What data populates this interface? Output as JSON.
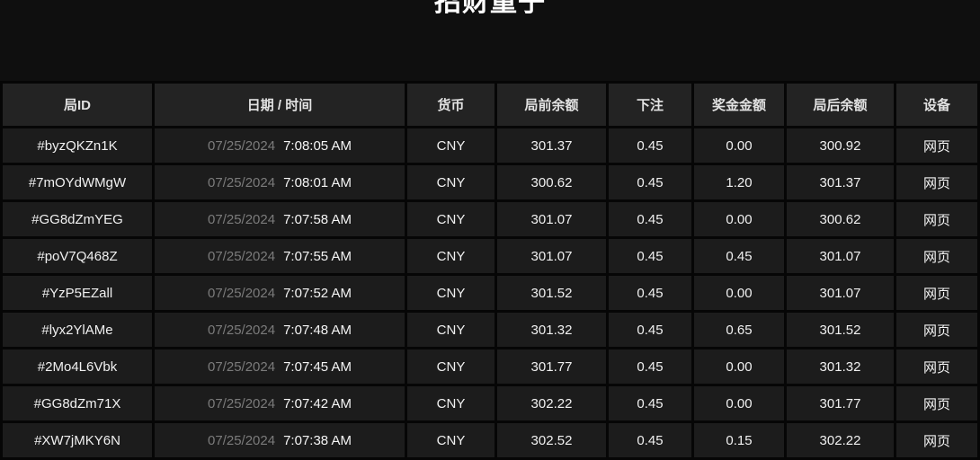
{
  "page": {
    "title": "招财童子"
  },
  "colors": {
    "page_background": "#0f0f0f",
    "header_cell_background": "#232323",
    "row_cell_background": "#1c1c1c",
    "divider": "#060606",
    "date_text": "#7b7b7b",
    "primary_text": "#f0f0f0"
  },
  "table": {
    "columns": [
      {
        "key": "id",
        "label": "局ID"
      },
      {
        "key": "datetime",
        "label": "日期 / 时间"
      },
      {
        "key": "currency",
        "label": "货币"
      },
      {
        "key": "balance_before",
        "label": "局前余额"
      },
      {
        "key": "bet",
        "label": "下注"
      },
      {
        "key": "prize",
        "label": "奖金金额"
      },
      {
        "key": "balance_after",
        "label": "局后余额"
      },
      {
        "key": "device",
        "label": "设备"
      }
    ],
    "rows": [
      {
        "id": "#byzQKZn1K",
        "date": "07/25/2024",
        "time": "7:08:05 AM",
        "currency": "CNY",
        "balance_before": "301.37",
        "bet": "0.45",
        "prize": "0.00",
        "balance_after": "300.92",
        "device": "网页"
      },
      {
        "id": "#7mOYdWMgW",
        "date": "07/25/2024",
        "time": "7:08:01 AM",
        "currency": "CNY",
        "balance_before": "300.62",
        "bet": "0.45",
        "prize": "1.20",
        "balance_after": "301.37",
        "device": "网页"
      },
      {
        "id": "#GG8dZmYEG",
        "date": "07/25/2024",
        "time": "7:07:58 AM",
        "currency": "CNY",
        "balance_before": "301.07",
        "bet": "0.45",
        "prize": "0.00",
        "balance_after": "300.62",
        "device": "网页"
      },
      {
        "id": "#poV7Q468Z",
        "date": "07/25/2024",
        "time": "7:07:55 AM",
        "currency": "CNY",
        "balance_before": "301.07",
        "bet": "0.45",
        "prize": "0.45",
        "balance_after": "301.07",
        "device": "网页"
      },
      {
        "id": "#YzP5EZall",
        "date": "07/25/2024",
        "time": "7:07:52 AM",
        "currency": "CNY",
        "balance_before": "301.52",
        "bet": "0.45",
        "prize": "0.00",
        "balance_after": "301.07",
        "device": "网页"
      },
      {
        "id": "#lyx2YlAMe",
        "date": "07/25/2024",
        "time": "7:07:48 AM",
        "currency": "CNY",
        "balance_before": "301.32",
        "bet": "0.45",
        "prize": "0.65",
        "balance_after": "301.52",
        "device": "网页"
      },
      {
        "id": "#2Mo4L6Vbk",
        "date": "07/25/2024",
        "time": "7:07:45 AM",
        "currency": "CNY",
        "balance_before": "301.77",
        "bet": "0.45",
        "prize": "0.00",
        "balance_after": "301.32",
        "device": "网页"
      },
      {
        "id": "#GG8dZm71X",
        "date": "07/25/2024",
        "time": "7:07:42 AM",
        "currency": "CNY",
        "balance_before": "302.22",
        "bet": "0.45",
        "prize": "0.00",
        "balance_after": "301.77",
        "device": "网页"
      },
      {
        "id": "#XW7jMKY6N",
        "date": "07/25/2024",
        "time": "7:07:38 AM",
        "currency": "CNY",
        "balance_before": "302.52",
        "bet": "0.45",
        "prize": "0.15",
        "balance_after": "302.22",
        "device": "网页"
      }
    ]
  }
}
